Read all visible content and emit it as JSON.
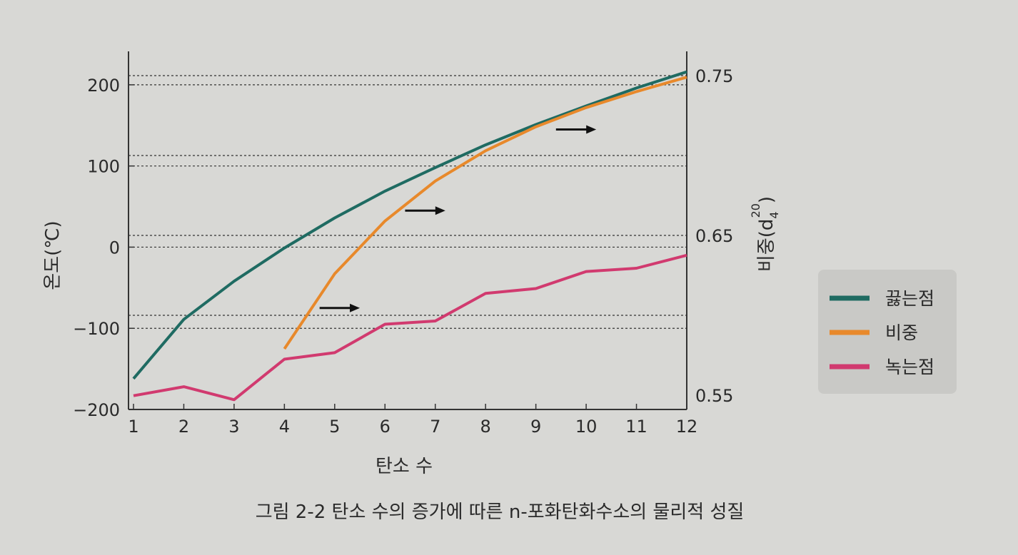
{
  "chart_data": {
    "type": "line",
    "caption": "그림 2-2  탄소 수의 증가에 따른 n-포화탄화수소의 물리적 성질",
    "xlabel": "탄소 수",
    "ylabel": "온도(℃)",
    "y2label_main": "비중(d",
    "y2label_sub": "4",
    "y2label_sup": "20",
    "y2label_close": ")",
    "x_ticks": [
      1,
      2,
      3,
      4,
      5,
      6,
      7,
      8,
      9,
      10,
      11,
      12
    ],
    "y_ticks": [
      200,
      100,
      0,
      -100,
      -200
    ],
    "y_tick_labels": [
      "200",
      "100",
      "0",
      "−100",
      "−200"
    ],
    "ylim": [
      -200,
      250
    ],
    "y2_ticks": [
      0.75,
      0.65,
      0.55
    ],
    "y2_tick_labels": [
      "0.75",
      "0.65",
      "0.55"
    ],
    "y2lim": [
      0.55,
      0.75
    ],
    "grid_y": [
      200,
      100,
      0,
      -100
    ],
    "grid_y2": [
      0.75,
      0.7,
      0.65,
      0.6
    ],
    "legend_position": "right",
    "series": [
      {
        "name": "끓는점",
        "axis": "left",
        "color": "#1f6b62",
        "x": [
          1,
          2,
          3,
          4,
          5,
          6,
          7,
          8,
          9,
          10,
          11,
          12
        ],
        "y": [
          -162,
          -89,
          -42,
          -1,
          36,
          69,
          98,
          126,
          151,
          174,
          196,
          216
        ]
      },
      {
        "name": "비중",
        "axis": "right",
        "color": "#e8892b",
        "x": [
          4,
          5,
          6,
          7,
          8,
          9,
          10,
          11,
          12
        ],
        "y": [
          0.579,
          0.626,
          0.659,
          0.684,
          0.703,
          0.718,
          0.73,
          0.74,
          0.749
        ]
      },
      {
        "name": "녹는점",
        "axis": "left",
        "color": "#d13a6f",
        "x": [
          1,
          2,
          3,
          4,
          5,
          6,
          7,
          8,
          9,
          10,
          11,
          12
        ],
        "y": [
          -183,
          -172,
          -188,
          -138,
          -130,
          -95,
          -91,
          -57,
          -51,
          -30,
          -26,
          -10
        ]
      }
    ],
    "annotations": [
      {
        "type": "arrow",
        "points_to": "right",
        "x_from": 4.7,
        "x_to": 5.5,
        "y": -75
      },
      {
        "type": "arrow",
        "points_to": "right",
        "x_from": 6.4,
        "x_to": 7.2,
        "y": 45
      },
      {
        "type": "arrow",
        "points_to": "right",
        "x_from": 9.4,
        "x_to": 10.2,
        "y": 145
      }
    ]
  }
}
